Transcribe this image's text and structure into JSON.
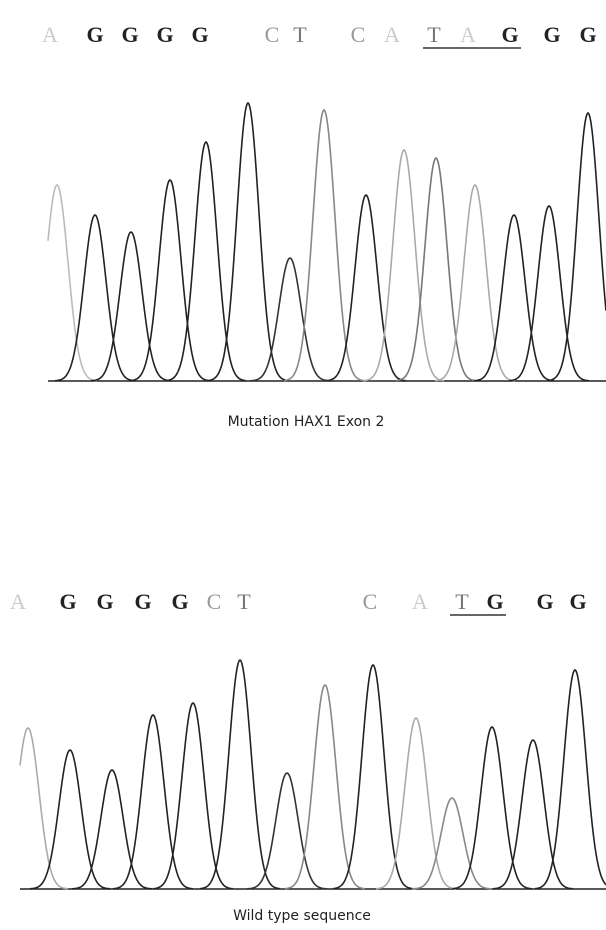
{
  "panels": [
    {
      "bases": [
        "A",
        "G",
        "G",
        "G",
        "G",
        "C",
        "T",
        "C",
        "A",
        "T",
        "A",
        "G",
        "G",
        "G"
      ],
      "caption": "Mutation HAX1 Exon 2"
    },
    {
      "bases": [
        "A",
        "G",
        "G",
        "G",
        "G",
        "C",
        "T",
        "C",
        "A",
        "T",
        "G",
        "G",
        "G"
      ],
      "caption": "Wild type sequence"
    }
  ]
}
